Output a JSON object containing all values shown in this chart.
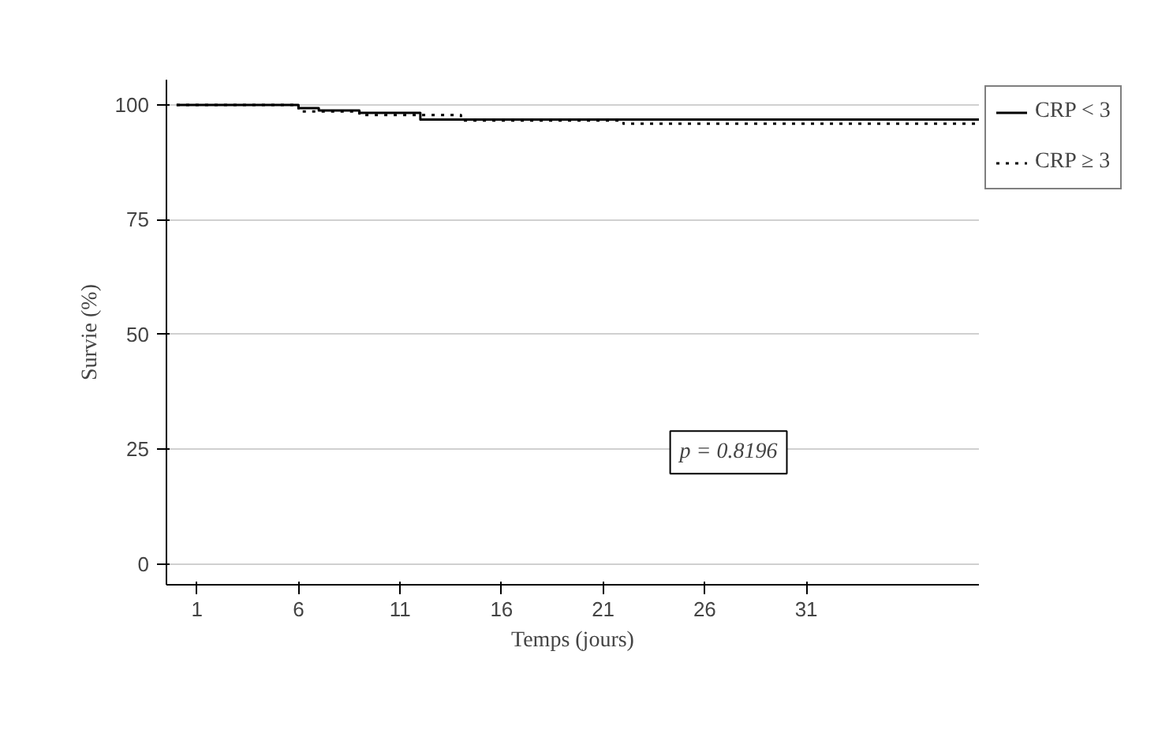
{
  "chart_data": {
    "type": "step",
    "xlabel": "Temps (jours)",
    "ylabel": "Survie (%)",
    "xlim": [
      -0.5,
      39.5
    ],
    "ylim": [
      -4.5,
      105.5
    ],
    "xticks": [
      1,
      6,
      11,
      16,
      21,
      26,
      31
    ],
    "yticks": [
      0,
      25,
      50,
      75,
      100
    ],
    "grid": "y",
    "legend": "top right",
    "marker": "none",
    "annotations": [
      "p = 0.8196"
    ],
    "series": [
      {
        "name": "CRP < 3",
        "color": "#000000",
        "line_style": "solid",
        "x": [
          0,
          6,
          7,
          9,
          12,
          39.5
        ],
        "values": [
          100,
          99.3,
          98.8,
          98.3,
          96.8,
          96.8
        ]
      },
      {
        "name": "CRP ≥ 3",
        "color": "#000000",
        "line_style": "dotted",
        "x": [
          0,
          6,
          9,
          14,
          22,
          39.5
        ],
        "values": [
          100,
          98.6,
          97.8,
          96.6,
          95.9,
          95.9
        ]
      }
    ]
  }
}
